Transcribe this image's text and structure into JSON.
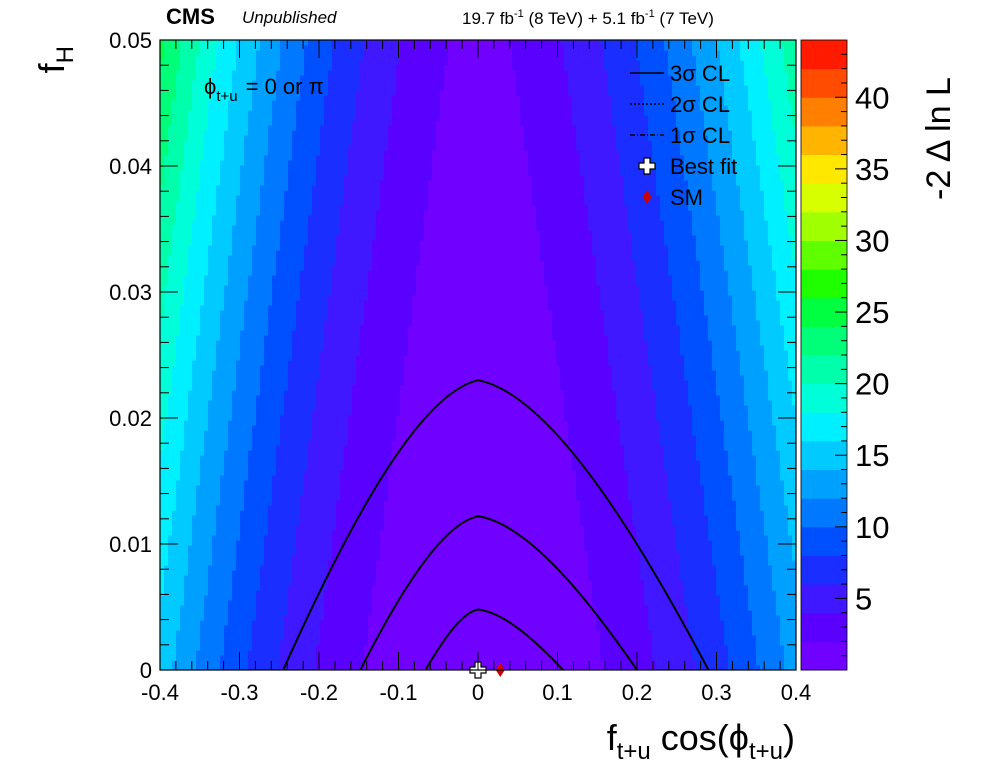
{
  "header": {
    "experiment": "CMS",
    "status": "Unpublished",
    "lumi_8tev_value": "19.7 fb",
    "lumi_8tev_exp": "-1",
    "lumi_8tev_energy": " (8 TeV) + ",
    "lumi_7tev_value": "5.1 fb",
    "lumi_7tev_exp": "-1",
    "lumi_7tev_energy": " (7 TeV)"
  },
  "chart_data": {
    "type": "heatmap",
    "xlabel": {
      "main": "f",
      "sub": "t+u",
      "mid": " cos(",
      "phi": "ϕ",
      "phisub": "t+u",
      "end": ")"
    },
    "ylabel": {
      "main": "f",
      "sub": "H"
    },
    "zlabel": "-2 Δ ln L",
    "xlim": [
      -0.4,
      0.4
    ],
    "ylim": [
      0,
      0.05
    ],
    "zlim": [
      0,
      44
    ],
    "x_ticks": [
      "-0.4",
      "-0.3",
      "-0.2",
      "-0.1",
      "0",
      "0.1",
      "0.2",
      "0.3",
      "0.4"
    ],
    "x_tick_values": [
      -0.4,
      -0.3,
      -0.2,
      -0.1,
      0,
      0.1,
      0.2,
      0.3,
      0.4
    ],
    "y_ticks": [
      "0",
      "0.01",
      "0.02",
      "0.03",
      "0.04",
      "0.05"
    ],
    "y_tick_values": [
      0,
      0.01,
      0.02,
      0.03,
      0.04,
      0.05
    ],
    "z_ticks": [
      "5",
      "10",
      "15",
      "20",
      "25",
      "30",
      "35",
      "40"
    ],
    "z_tick_values": [
      5,
      10,
      15,
      20,
      25,
      30,
      35,
      40
    ],
    "contour_levels": 20,
    "palette": [
      "#7000ff",
      "#5a00ff",
      "#3f18ff",
      "#1a2eff",
      "#0050ff",
      "#0078ff",
      "#00a0ff",
      "#00caff",
      "#00f0ff",
      "#00ffd8",
      "#00ffaa",
      "#00ff78",
      "#00ff40",
      "#20ff00",
      "#60ff00",
      "#a0ff00",
      "#d8ff00",
      "#ffe800",
      "#ffb400",
      "#ff8000",
      "#ff4c00",
      "#ff1a00"
    ],
    "annotation": {
      "phi": "ϕ",
      "phisub": "t+u",
      "text": "= 0 or  π"
    },
    "legend": {
      "position": "top-right",
      "items": [
        {
          "style": "solid",
          "label": "3σ CL"
        },
        {
          "style": "dotted",
          "label": "2σ CL"
        },
        {
          "style": "dashdot",
          "label": "1σ CL"
        },
        {
          "style": "cross",
          "label": "Best fit"
        },
        {
          "style": "diamond",
          "label": "SM"
        }
      ]
    },
    "contours": [
      {
        "name": "1σ CL",
        "level": 2.3,
        "apex_y": 0.0048,
        "left_x": -0.066,
        "right_x": 0.107
      },
      {
        "name": "2σ CL",
        "level": 6.18,
        "apex_y": 0.0122,
        "left_x": -0.148,
        "right_x": 0.2
      },
      {
        "name": "3σ CL",
        "level": 11.83,
        "apex_y": 0.023,
        "left_x": -0.245,
        "right_x": 0.29
      }
    ],
    "best_fit": {
      "x": 0.0,
      "y": 0.0
    },
    "sm_point": {
      "x": 0.028,
      "y": 0.0
    },
    "colors": {
      "best_fit": "#ffffff",
      "sm": "#cc0000",
      "contour": "#000000"
    }
  }
}
